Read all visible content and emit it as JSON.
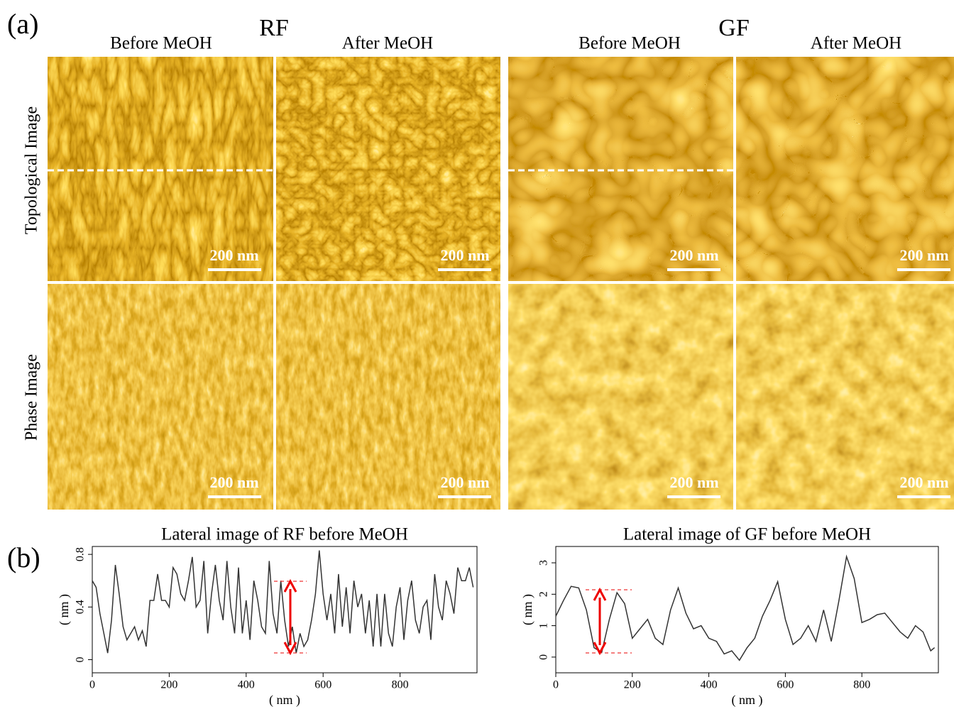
{
  "figure": {
    "panel_a": "(a)",
    "panel_b": "(b)",
    "groups": [
      "RF",
      "GF"
    ],
    "columns": [
      "Before MeOH",
      "After MeOH",
      "Before MeOH",
      "After MeOH"
    ],
    "rows": [
      "Topological Image",
      "Phase Image"
    ],
    "scale_bar": "200 nm"
  },
  "chart_data": [
    {
      "type": "line",
      "title": "Lateral image of RF before MeOH",
      "x_label": "( nm )",
      "y_label": "( nm )",
      "color": "#333333",
      "x": [
        0,
        10,
        20,
        30,
        40,
        50,
        60,
        70,
        80,
        90,
        100,
        110,
        120,
        130,
        140,
        150,
        160,
        170,
        180,
        190,
        200,
        210,
        220,
        230,
        240,
        250,
        260,
        270,
        280,
        290,
        300,
        310,
        320,
        330,
        340,
        350,
        360,
        370,
        380,
        390,
        400,
        410,
        420,
        430,
        440,
        450,
        460,
        470,
        480,
        490,
        500,
        510,
        520,
        530,
        540,
        550,
        560,
        570,
        580,
        590,
        600,
        610,
        620,
        630,
        640,
        650,
        660,
        670,
        680,
        690,
        700,
        710,
        720,
        730,
        740,
        750,
        760,
        770,
        780,
        790,
        800,
        810,
        820,
        830,
        840,
        850,
        860,
        870,
        880,
        890,
        900,
        910,
        920,
        930,
        940,
        950,
        960,
        970,
        980,
        990
      ],
      "values": [
        0.6,
        0.55,
        0.35,
        0.2,
        0.05,
        0.3,
        0.72,
        0.5,
        0.25,
        0.15,
        0.2,
        0.25,
        0.15,
        0.22,
        0.1,
        0.45,
        0.45,
        0.65,
        0.45,
        0.45,
        0.4,
        0.7,
        0.65,
        0.5,
        0.45,
        0.6,
        0.78,
        0.4,
        0.45,
        0.75,
        0.2,
        0.5,
        0.72,
        0.45,
        0.3,
        0.75,
        0.4,
        0.2,
        0.7,
        0.2,
        0.45,
        0.15,
        0.6,
        0.45,
        0.25,
        0.2,
        0.75,
        0.35,
        0.2,
        0.6,
        0.3,
        0.1,
        0.25,
        0.05,
        0.2,
        0.1,
        0.15,
        0.3,
        0.5,
        0.83,
        0.5,
        0.3,
        0.5,
        0.2,
        0.65,
        0.25,
        0.55,
        0.2,
        0.6,
        0.4,
        0.5,
        0.2,
        0.45,
        0.1,
        0.5,
        0.1,
        0.5,
        0.2,
        0.1,
        0.4,
        0.55,
        0.15,
        0.45,
        0.6,
        0.3,
        0.2,
        0.4,
        0.45,
        0.15,
        0.65,
        0.4,
        0.3,
        0.6,
        0.5,
        0.35,
        0.7,
        0.6,
        0.6,
        0.7,
        0.55
      ],
      "xlim": [
        0,
        1000
      ],
      "ylim": [
        -0.1,
        0.86
      ],
      "xticks": [
        0,
        200,
        400,
        600,
        800
      ],
      "yticks": [
        0,
        0.4,
        0.8
      ]
    },
    {
      "type": "line",
      "title": "Lateral image of GF before MeOH",
      "x_label": "( nm )",
      "y_label": "( nm )",
      "color": "#333333",
      "x": [
        0,
        20,
        40,
        60,
        80,
        100,
        120,
        140,
        160,
        180,
        200,
        220,
        240,
        260,
        280,
        300,
        320,
        340,
        360,
        380,
        400,
        420,
        440,
        460,
        480,
        500,
        520,
        540,
        560,
        580,
        600,
        620,
        640,
        660,
        680,
        700,
        720,
        740,
        760,
        780,
        800,
        820,
        840,
        860,
        880,
        900,
        920,
        940,
        960,
        980,
        990
      ],
      "values": [
        1.3,
        1.8,
        2.25,
        2.2,
        1.5,
        0.3,
        0.15,
        1.2,
        2.05,
        1.7,
        0.6,
        0.9,
        1.2,
        0.6,
        0.4,
        1.5,
        2.2,
        1.4,
        0.9,
        1.0,
        0.6,
        0.5,
        0.1,
        0.2,
        -0.1,
        0.3,
        0.6,
        1.3,
        1.8,
        2.4,
        1.2,
        0.4,
        0.6,
        1.0,
        0.5,
        1.5,
        0.5,
        1.8,
        3.2,
        2.5,
        1.1,
        1.2,
        1.35,
        1.4,
        1.1,
        0.8,
        0.6,
        1.0,
        0.8,
        0.2,
        0.3
      ],
      "xlim": [
        0,
        1000
      ],
      "ylim": [
        -0.5,
        3.52
      ],
      "xticks": [
        0,
        200,
        400,
        600,
        800
      ],
      "yticks": [
        0,
        1,
        2,
        3
      ]
    }
  ]
}
